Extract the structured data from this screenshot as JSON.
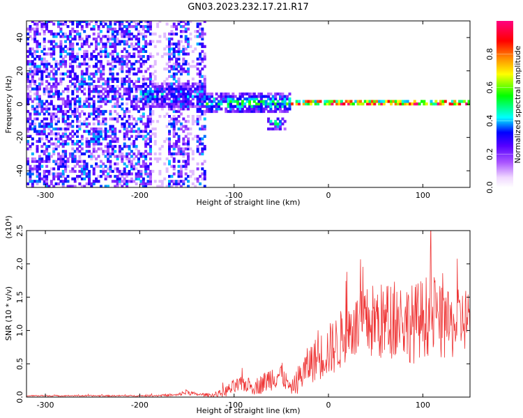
{
  "title": "GN03.2023.232.17.21.R17",
  "colors": {
    "snr_line": "#ee3333",
    "frame": "#000000"
  },
  "chart_data": [
    {
      "type": "heatmap",
      "title": "GN03.2023.232.17.21.R17",
      "xlabel": "Height of straight line (km)",
      "ylabel": "Frequency (Hz)",
      "xlim": [
        -320,
        150
      ],
      "ylim": [
        -50,
        50
      ],
      "x_ticks": [
        -300,
        -200,
        -100,
        0,
        100
      ],
      "y_ticks": [
        -40,
        -20,
        0,
        20,
        40
      ],
      "grid": false,
      "colorbar": {
        "label": "Normalized spectral amplitude",
        "range": [
          0.0,
          1.0
        ],
        "ticks": [
          0.0,
          0.2,
          0.4,
          0.6,
          0.8
        ],
        "tick_labels": [
          "0.0",
          "0.2",
          "0.4",
          "0.6",
          "0.8"
        ],
        "colormap": "rainbow (white-purple-blue-cyan-green-yellow-red-pink)",
        "placement": "right"
      },
      "description_features": [
        {
          "x_range": [
            -320,
            -130
          ],
          "freq_range": [
            -50,
            50
          ],
          "amplitude": 0.15,
          "pattern": "broadband noise"
        },
        {
          "x_range": [
            -200,
            -130
          ],
          "freq_center": 5,
          "freq_halfwidth": 8,
          "amplitude": 0.35
        },
        {
          "x_range": [
            -130,
            -40
          ],
          "freq_center": 0,
          "freq_halfwidth": 6,
          "amplitude": 0.45
        },
        {
          "x_range": [
            -65,
            -45
          ],
          "freq_center": -12,
          "freq_halfwidth": 4,
          "amplitude": 0.4
        },
        {
          "x_range": [
            -40,
            150
          ],
          "freq_center": 0,
          "freq_halfwidth": 2,
          "amplitude": 0.9
        }
      ]
    },
    {
      "type": "line",
      "xlabel": "Height of straight line (km)",
      "ylabel": "SNR (10 * v/v)",
      "y_multiplier": "(x10⁴)",
      "xlim": [
        -320,
        150
      ],
      "ylim": [
        0.0,
        2.5
      ],
      "x_ticks": [
        -300,
        -200,
        -100,
        0,
        100
      ],
      "y_ticks": [
        0.0,
        0.5,
        1.0,
        1.5,
        2.0,
        2.5
      ],
      "y_tick_labels": [
        "0.0",
        "0.5",
        "1.0",
        "1.5",
        "2.0",
        "2.5"
      ],
      "grid": false,
      "series": [
        {
          "color": "#ee3333",
          "x": [
            -320,
            -300,
            -250,
            -200,
            -160,
            -150,
            -140,
            -120,
            -110,
            -100,
            -90,
            -80,
            -70,
            -60,
            -50,
            -40,
            -30,
            -20,
            -10,
            0,
            10,
            20,
            30,
            40,
            50,
            60,
            70,
            80,
            90,
            100,
            110,
            120,
            130,
            140,
            150
          ],
          "values": [
            0.02,
            0.02,
            0.02,
            0.02,
            0.03,
            0.08,
            0.04,
            0.03,
            0.08,
            0.15,
            0.2,
            0.15,
            0.2,
            0.3,
            0.35,
            0.12,
            0.3,
            0.5,
            0.6,
            0.7,
            0.8,
            1.0,
            1.05,
            1.1,
            1.15,
            1.1,
            1.2,
            1.15,
            1.1,
            1.2,
            1.25,
            1.1,
            1.05,
            1.15,
            1.2
          ],
          "noise_amplitude": [
            0.01,
            0.01,
            0.01,
            0.01,
            0.02,
            0.05,
            0.02,
            0.03,
            0.08,
            0.12,
            0.12,
            0.12,
            0.15,
            0.2,
            0.2,
            0.08,
            0.25,
            0.3,
            0.35,
            0.4,
            0.45,
            0.45,
            0.5,
            0.55,
            0.6,
            0.6,
            0.6,
            0.6,
            0.6,
            0.6,
            0.65,
            0.55,
            0.5,
            0.5,
            0.5
          ]
        }
      ]
    }
  ]
}
